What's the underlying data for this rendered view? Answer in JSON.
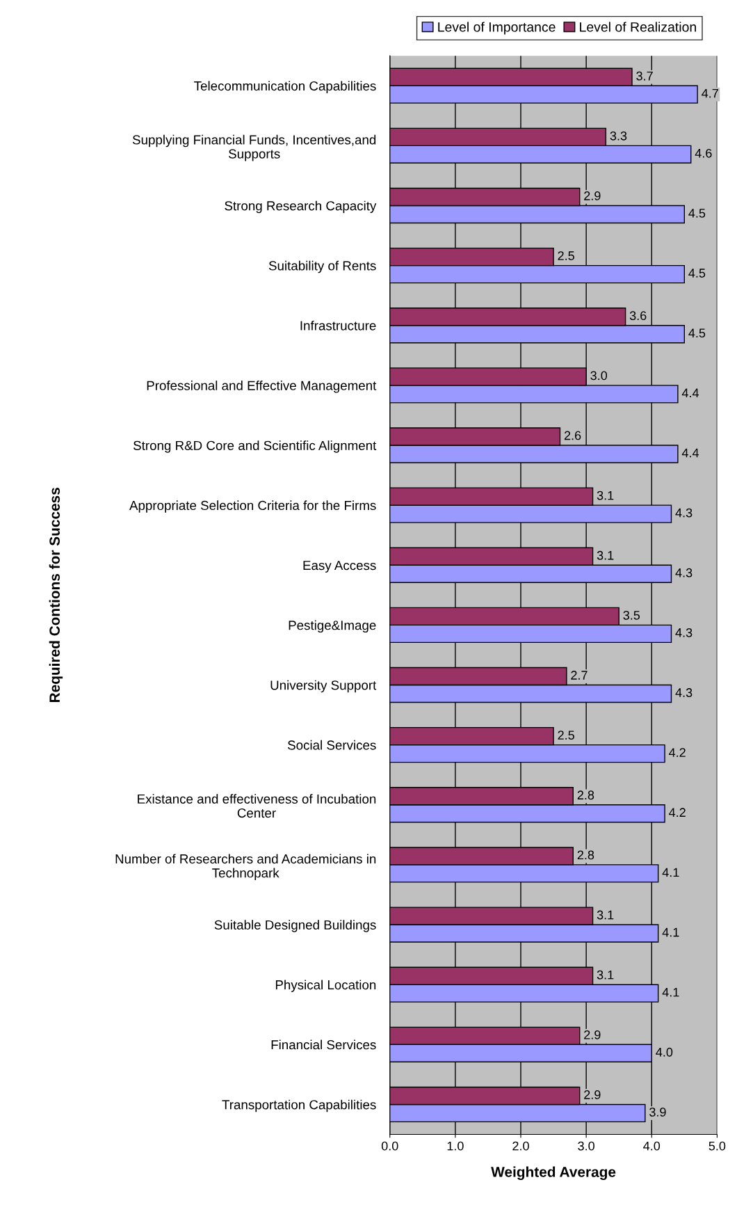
{
  "chart_data": {
    "type": "bar",
    "orientation": "horizontal",
    "xlabel": "Weighted Average",
    "ylabel": "Required Contions for Success",
    "categories": [
      "Telecommunication Capabilities",
      "Supplying Financial Funds, Incentives,and\nSupports",
      "Strong Research Capacity",
      "Suitability of Rents",
      "Infrastructure",
      "Professional and Effective Management",
      "Strong R&D Core and Scientific Alignment",
      "Appropriate Selection Criteria for the Firms",
      "Easy Access",
      "Pestige&Image",
      "University Support",
      "Social Services",
      "Existance and effectiveness of Incubation\nCenter",
      "Number of Researchers and Academicians in\nTechnopark",
      "Suitable Designed Buildings",
      "Physical Location",
      "Financial Services",
      "Transportation Capabilities"
    ],
    "series": [
      {
        "name": "Level of Importance",
        "color": "#9999ff",
        "values": [
          4.7,
          4.6,
          4.5,
          4.5,
          4.5,
          4.4,
          4.4,
          4.3,
          4.3,
          4.3,
          4.3,
          4.2,
          4.2,
          4.1,
          4.1,
          4.1,
          4.0,
          3.9
        ],
        "value_labels": [
          "4.7",
          "4.6",
          "4.5",
          "4.5",
          "4.5",
          "4.4",
          "4.4",
          "4.3",
          "4.3",
          "4.3",
          "4.3",
          "4.2",
          "4.2",
          "4.1",
          "4.1",
          "4.1",
          "4.0",
          "3.9"
        ]
      },
      {
        "name": "Level of Realization",
        "color": "#993366",
        "values": [
          3.7,
          3.3,
          2.9,
          2.5,
          3.6,
          3.0,
          2.6,
          3.1,
          3.1,
          3.5,
          2.7,
          2.5,
          2.8,
          2.8,
          3.1,
          3.1,
          2.9,
          2.9
        ],
        "value_labels": [
          "3.7",
          "3.3",
          "2.9",
          "2.5",
          "3.6",
          "3.0",
          "2.6",
          "3.1",
          "3.1",
          "3.5",
          "2.7",
          "2.5",
          "2.8",
          "2.8",
          "3.1",
          "3.1",
          "2.9",
          "2.9"
        ]
      }
    ],
    "xlim": [
      0,
      5
    ],
    "xticks": [
      {
        "value": 0,
        "label": "0.0"
      },
      {
        "value": 1,
        "label": "1.0"
      },
      {
        "value": 2,
        "label": "2.0"
      },
      {
        "value": 3,
        "label": "3.0"
      },
      {
        "value": 4,
        "label": "4.0"
      },
      {
        "value": 5,
        "label": "5.0"
      }
    ],
    "grid": "x",
    "legend": "top right"
  }
}
